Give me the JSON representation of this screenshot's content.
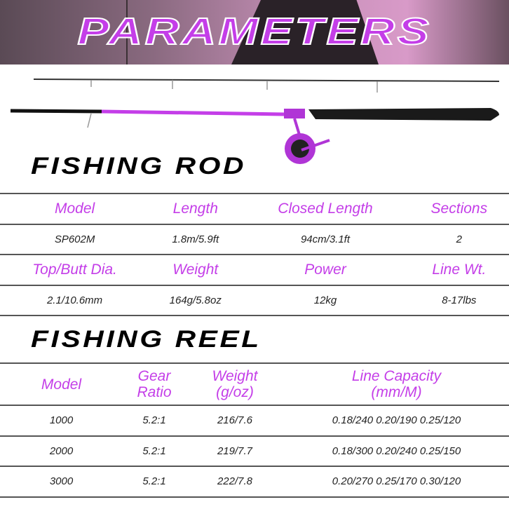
{
  "banner": {
    "title": "PARAMETERS"
  },
  "colors": {
    "accent": "#c43ee8",
    "text": "#222222"
  },
  "rod": {
    "title": "FISHING ROD",
    "header1": [
      "Model",
      "Length",
      "Closed Length",
      "Sections"
    ],
    "row1": [
      "SP602M",
      "1.8m/5.9ft",
      "94cm/3.1ft",
      "2"
    ],
    "header2": [
      "Top/Butt Dia.",
      "Weight",
      "Power",
      "Line Wt."
    ],
    "row2": [
      "2.1/10.6mm",
      "164g/5.8oz",
      "12kg",
      "8-17lbs"
    ]
  },
  "reel": {
    "title": "FISHING REEL",
    "headers": [
      "Model",
      "Gear Ratio",
      "Weight\n(g/oz)",
      "Line Capacity\n(mm/M)"
    ],
    "header_lines": {
      "weight": [
        "Weight",
        "(g/oz)"
      ],
      "capacity": [
        "Line Capacity",
        "(mm/M)"
      ]
    },
    "rows": [
      [
        "1000",
        "5.2:1",
        "216/7.6",
        "0.18/240 0.20/190 0.25/120"
      ],
      [
        "2000",
        "5.2:1",
        "219/7.7",
        "0.18/300 0.20/240 0.25/150"
      ],
      [
        "3000",
        "5.2:1",
        "222/7.8",
        "0.20/270 0.25/170 0.30/120"
      ]
    ]
  }
}
